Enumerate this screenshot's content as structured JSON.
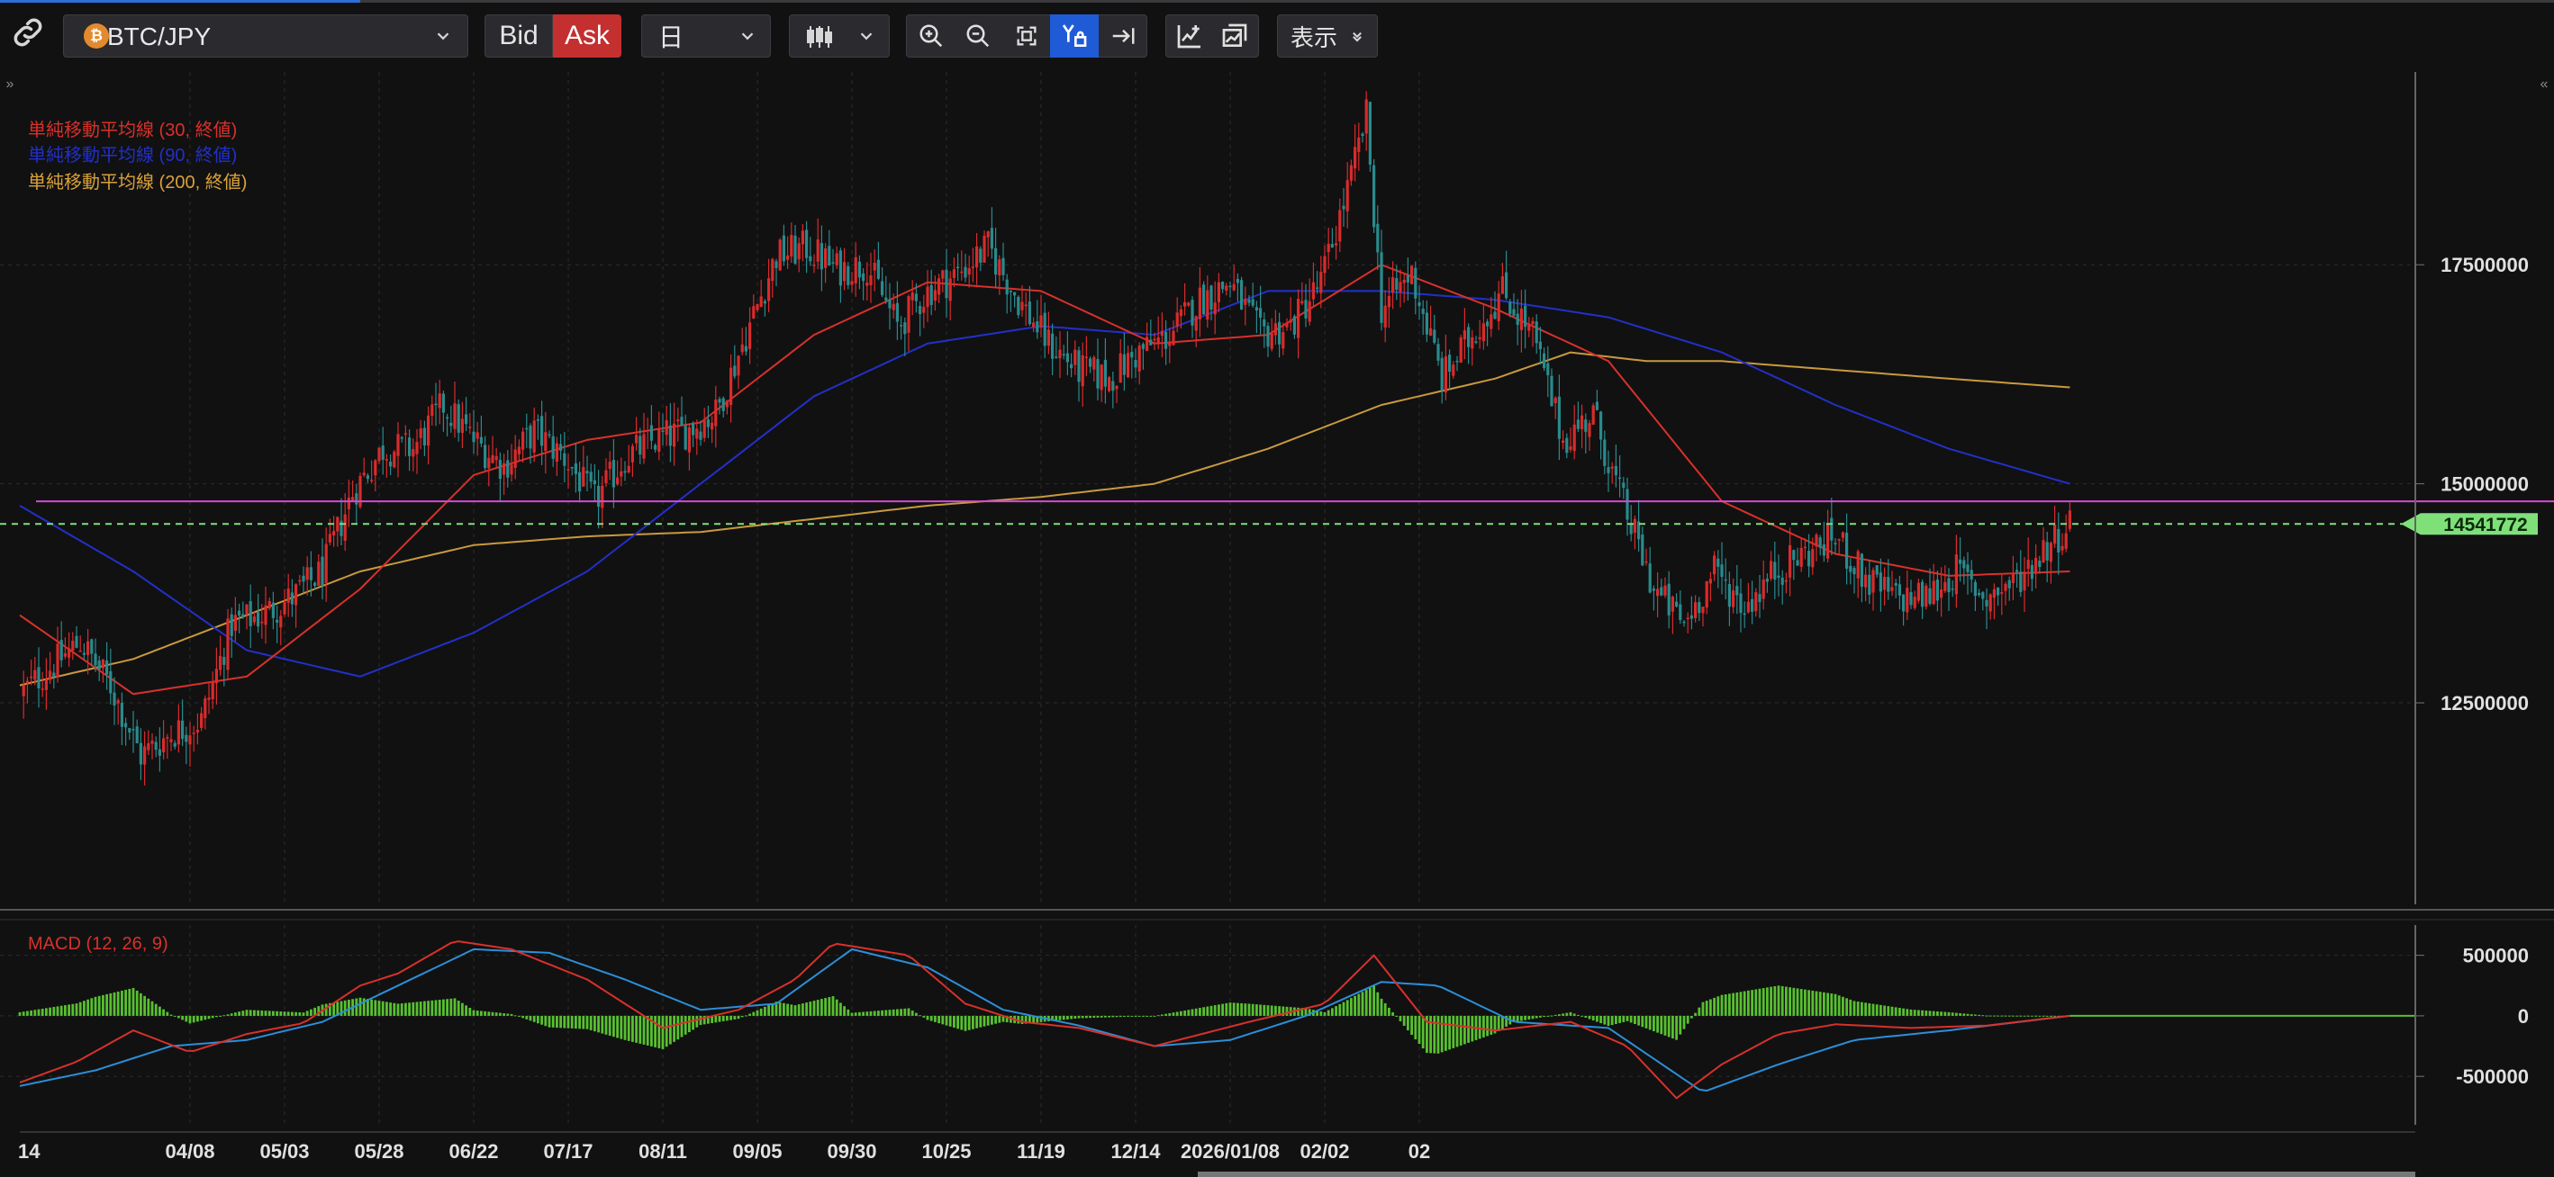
{
  "toolbar": {
    "symbol": "BTC/JPY",
    "bid_label": "Bid",
    "ask_label": "Ask",
    "timeframe": "日",
    "view_label": "表示",
    "icons": [
      "link-icon",
      "bitcoin-icon",
      "candlestick-icon",
      "zoom-in-icon",
      "zoom-out-icon",
      "fit-icon",
      "y-axis-lock-icon",
      "scroll-to-end-icon",
      "add-indicator-icon",
      "chart-settings-icon",
      "chevron-down-icon"
    ],
    "colors": {
      "ask_bg": "#c42f2f",
      "active_icon_bg": "#1f5bd6"
    }
  },
  "legends": {
    "sma30": "単純移動平均線 (30, 終値)",
    "sma90": "単純移動平均線 (90, 終値)",
    "sma200": "単純移動平均線 (200, 終値)",
    "macd": "MACD (12, 26, 9)"
  },
  "colors": {
    "up": "#d92b2b",
    "down": "#2a8a8c",
    "sma30": "#d8312a",
    "sma90": "#2230c8",
    "sma200": "#c99a3c",
    "hline": "#d64ad6",
    "last_price": "#7fe07a",
    "macd_line": "#d8312a",
    "signal_line": "#2c8fd8",
    "histogram": "#58c030"
  },
  "chart_data": [
    {
      "type": "candlestick",
      "title": "BTC/JPY",
      "x_tick_labels": [
        "14",
        "04/08",
        "05/03",
        "05/28",
        "06/22",
        "07/17",
        "08/11",
        "09/05",
        "09/30",
        "10/25",
        "11/19",
        "12/14",
        "2026/01/08",
        "02/02",
        "02"
      ],
      "y_tick_labels": [
        "17500000",
        "15000000",
        "12500000"
      ],
      "ylim": [
        10200000,
        19700000
      ],
      "last_price": 14541772,
      "last_price_label": "14541772",
      "horizontal_line": 14800000,
      "close_anchors": [
        [
          0,
          12600000
        ],
        [
          8,
          12900000
        ],
        [
          16,
          13200000
        ],
        [
          24,
          12700000
        ],
        [
          32,
          11900000
        ],
        [
          40,
          12150000
        ],
        [
          48,
          12300000
        ],
        [
          56,
          13400000
        ],
        [
          64,
          13500000
        ],
        [
          72,
          13700000
        ],
        [
          80,
          14000000
        ],
        [
          88,
          14900000
        ],
        [
          96,
          15400000
        ],
        [
          104,
          15400000
        ],
        [
          112,
          15900000
        ],
        [
          120,
          15500000
        ],
        [
          128,
          15200000
        ],
        [
          136,
          15600000
        ],
        [
          144,
          15300000
        ],
        [
          152,
          14800000
        ],
        [
          160,
          15300000
        ],
        [
          168,
          15500000
        ],
        [
          176,
          15600000
        ],
        [
          184,
          15800000
        ],
        [
          192,
          16700000
        ],
        [
          200,
          17600000
        ],
        [
          208,
          17700000
        ],
        [
          216,
          17450000
        ],
        [
          224,
          17500000
        ],
        [
          232,
          16800000
        ],
        [
          240,
          17200000
        ],
        [
          248,
          17400000
        ],
        [
          256,
          17700000
        ],
        [
          264,
          17100000
        ],
        [
          272,
          16600000
        ],
        [
          280,
          16300000
        ],
        [
          288,
          16200000
        ],
        [
          296,
          16500000
        ],
        [
          304,
          16700000
        ],
        [
          312,
          17100000
        ],
        [
          320,
          17300000
        ],
        [
          328,
          16700000
        ],
        [
          336,
          16800000
        ],
        [
          344,
          17300000
        ],
        [
          352,
          18500000
        ],
        [
          356,
          19200000
        ],
        [
          360,
          17000000
        ],
        [
          368,
          17400000
        ],
        [
          376,
          16200000
        ],
        [
          384,
          16700000
        ],
        [
          392,
          17200000
        ],
        [
          400,
          16700000
        ],
        [
          408,
          15500000
        ],
        [
          416,
          15800000
        ],
        [
          422,
          15000000
        ],
        [
          432,
          13800000
        ],
        [
          440,
          13400000
        ],
        [
          448,
          14000000
        ],
        [
          456,
          13600000
        ],
        [
          464,
          14000000
        ],
        [
          472,
          14200000
        ],
        [
          480,
          14400000
        ],
        [
          488,
          13900000
        ],
        [
          496,
          13700000
        ],
        [
          504,
          13700000
        ],
        [
          512,
          14000000
        ],
        [
          520,
          13700000
        ],
        [
          528,
          13900000
        ],
        [
          536,
          14300000
        ],
        [
          542,
          14550000
        ]
      ],
      "sma_anchors": {
        "sma30": [
          [
            0,
            13500000
          ],
          [
            30,
            12600000
          ],
          [
            60,
            12800000
          ],
          [
            90,
            13800000
          ],
          [
            120,
            15100000
          ],
          [
            150,
            15500000
          ],
          [
            180,
            15700000
          ],
          [
            210,
            16700000
          ],
          [
            240,
            17300000
          ],
          [
            270,
            17200000
          ],
          [
            300,
            16600000
          ],
          [
            330,
            16700000
          ],
          [
            360,
            17500000
          ],
          [
            390,
            17000000
          ],
          [
            420,
            16400000
          ],
          [
            450,
            14800000
          ],
          [
            480,
            14200000
          ],
          [
            510,
            13950000
          ],
          [
            542,
            14000000
          ]
        ],
        "sma90": [
          [
            0,
            14750000
          ],
          [
            30,
            14000000
          ],
          [
            60,
            13100000
          ],
          [
            90,
            12800000
          ],
          [
            120,
            13300000
          ],
          [
            150,
            14000000
          ],
          [
            180,
            15000000
          ],
          [
            210,
            16000000
          ],
          [
            240,
            16600000
          ],
          [
            270,
            16800000
          ],
          [
            300,
            16700000
          ],
          [
            330,
            17200000
          ],
          [
            360,
            17200000
          ],
          [
            390,
            17100000
          ],
          [
            420,
            16900000
          ],
          [
            450,
            16500000
          ],
          [
            480,
            15900000
          ],
          [
            510,
            15400000
          ],
          [
            542,
            15000000
          ]
        ],
        "sma200": [
          [
            0,
            12700000
          ],
          [
            30,
            13000000
          ],
          [
            60,
            13500000
          ],
          [
            90,
            14000000
          ],
          [
            120,
            14300000
          ],
          [
            150,
            14400000
          ],
          [
            180,
            14450000
          ],
          [
            210,
            14600000
          ],
          [
            240,
            14750000
          ],
          [
            270,
            14850000
          ],
          [
            300,
            15000000
          ],
          [
            330,
            15400000
          ],
          [
            360,
            15900000
          ],
          [
            390,
            16200000
          ],
          [
            410,
            16500000
          ],
          [
            430,
            16400000
          ],
          [
            450,
            16400000
          ],
          [
            480,
            16300000
          ],
          [
            510,
            16200000
          ],
          [
            542,
            16100000
          ]
        ]
      }
    },
    {
      "type": "macd",
      "title": "MACD (12, 26, 9)",
      "y_tick_labels": [
        "500000",
        "0",
        "-500000"
      ],
      "ylim": [
        -900000,
        750000
      ],
      "macd_anchors": [
        [
          0,
          -550000
        ],
        [
          15,
          -380000
        ],
        [
          30,
          -120000
        ],
        [
          45,
          -300000
        ],
        [
          60,
          -150000
        ],
        [
          75,
          -60000
        ],
        [
          90,
          250000
        ],
        [
          100,
          350000
        ],
        [
          115,
          620000
        ],
        [
          130,
          550000
        ],
        [
          150,
          300000
        ],
        [
          170,
          -100000
        ],
        [
          190,
          50000
        ],
        [
          205,
          300000
        ],
        [
          215,
          600000
        ],
        [
          235,
          500000
        ],
        [
          250,
          100000
        ],
        [
          265,
          -50000
        ],
        [
          280,
          -100000
        ],
        [
          300,
          -250000
        ],
        [
          325,
          -50000
        ],
        [
          345,
          100000
        ],
        [
          358,
          500000
        ],
        [
          372,
          -50000
        ],
        [
          390,
          -120000
        ],
        [
          410,
          -50000
        ],
        [
          425,
          -250000
        ],
        [
          438,
          -680000
        ],
        [
          450,
          -400000
        ],
        [
          465,
          -150000
        ],
        [
          480,
          -70000
        ],
        [
          500,
          -100000
        ],
        [
          520,
          -80000
        ],
        [
          542,
          0
        ]
      ],
      "signal_anchors": [
        [
          0,
          -580000
        ],
        [
          20,
          -450000
        ],
        [
          40,
          -250000
        ],
        [
          60,
          -200000
        ],
        [
          80,
          -50000
        ],
        [
          100,
          250000
        ],
        [
          120,
          550000
        ],
        [
          140,
          520000
        ],
        [
          160,
          300000
        ],
        [
          180,
          50000
        ],
        [
          200,
          100000
        ],
        [
          220,
          550000
        ],
        [
          240,
          400000
        ],
        [
          260,
          50000
        ],
        [
          280,
          -80000
        ],
        [
          300,
          -250000
        ],
        [
          320,
          -200000
        ],
        [
          340,
          0
        ],
        [
          360,
          280000
        ],
        [
          375,
          250000
        ],
        [
          395,
          -50000
        ],
        [
          420,
          -100000
        ],
        [
          445,
          -630000
        ],
        [
          465,
          -400000
        ],
        [
          485,
          -200000
        ],
        [
          510,
          -120000
        ],
        [
          542,
          0
        ]
      ]
    }
  ]
}
